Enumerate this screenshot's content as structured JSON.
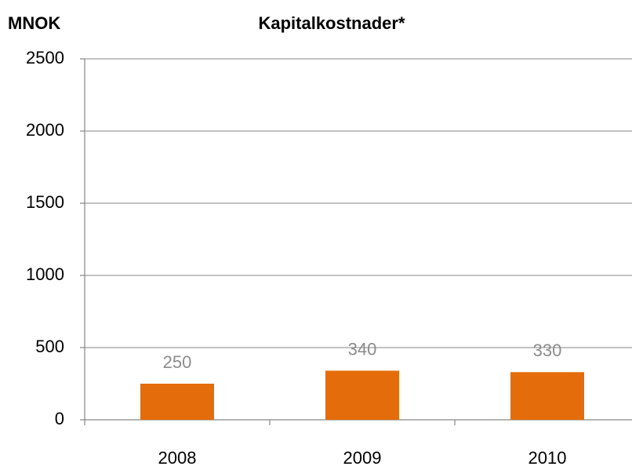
{
  "chart_data": {
    "type": "bar",
    "title": "Kapitalkostnader*",
    "ylabel": "MNOK",
    "categories": [
      "2008",
      "2009",
      "2010"
    ],
    "values": [
      250,
      340,
      330
    ],
    "color": "#e46c0a",
    "label_color": "#8c8c8c",
    "ylim": [
      0,
      2500
    ],
    "yticks": [
      0,
      500,
      1000,
      1500,
      2000,
      2500
    ],
    "grid": true
  }
}
